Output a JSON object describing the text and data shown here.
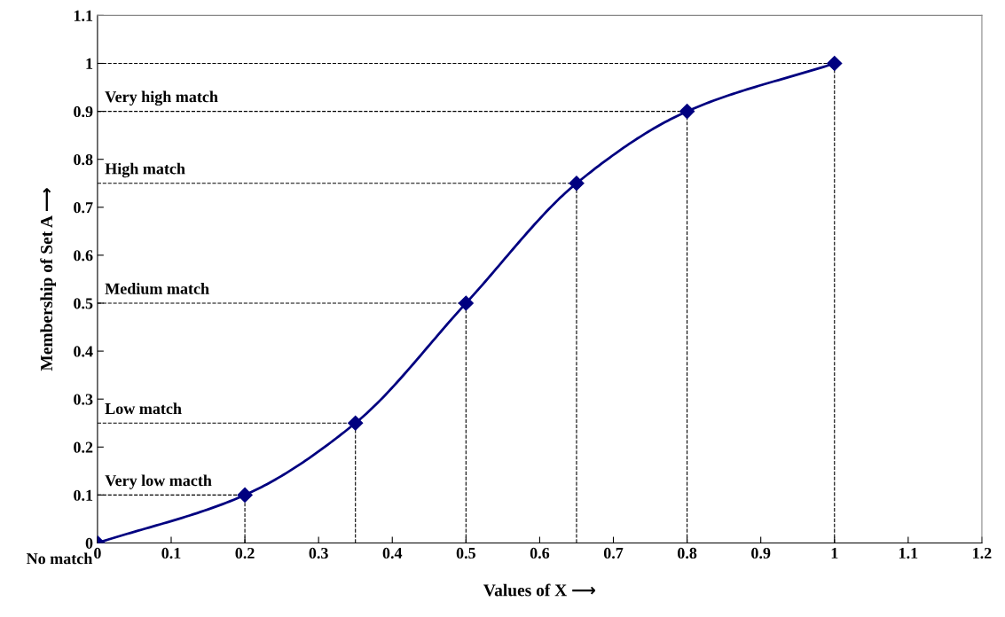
{
  "chart_data": {
    "type": "line",
    "xlabel": "Values of X ⟶",
    "ylabel": "Membership of Set A ⟶",
    "x": [
      0,
      0.2,
      0.35,
      0.5,
      0.65,
      0.8,
      1
    ],
    "series": [
      {
        "color": "#000080",
        "values": [
          0,
          0.1,
          0.25,
          0.5,
          0.75,
          0.9,
          1
        ]
      }
    ],
    "marker": "diamond",
    "line_style": "solid",
    "grid": false,
    "legend": false,
    "xlim": [
      0,
      1.2
    ],
    "xticks": [
      0,
      0.1,
      0.2,
      0.3,
      0.4,
      0.5,
      0.6,
      0.7,
      0.8,
      0.9,
      1,
      1.1,
      1.2
    ],
    "ylim": [
      0,
      1.1
    ],
    "yticks": [
      0,
      0.1,
      0.2,
      0.3,
      0.4,
      0.5,
      0.6,
      0.7,
      0.8,
      0.9,
      1,
      1.1
    ],
    "ref_lines": [
      {
        "axis": "y",
        "value": 0.1,
        "label": "Very low macth",
        "line_style": "dashed",
        "color": "#000000"
      },
      {
        "axis": "y",
        "value": 0.25,
        "label": "Low match",
        "line_style": "dashed",
        "color": "#000000"
      },
      {
        "axis": "y",
        "value": 0.5,
        "label": "Medium match",
        "line_style": "dashed",
        "color": "#000000"
      },
      {
        "axis": "y",
        "value": 0.75,
        "label": "High match",
        "line_style": "dashed",
        "color": "#000000"
      },
      {
        "axis": "y",
        "value": 0.9,
        "label": "Very high match",
        "line_style": "dashed",
        "color": "#000000"
      },
      {
        "axis": "y",
        "value": 1,
        "line_style": "dashed",
        "color": "#000000"
      },
      {
        "axis": "x",
        "value": 0.2,
        "line_style": "dashed",
        "color": "#000000"
      },
      {
        "axis": "x",
        "value": 0.35,
        "line_style": "dashed",
        "color": "#000000"
      },
      {
        "axis": "x",
        "value": 0.5,
        "line_style": "dashed",
        "color": "#000000"
      },
      {
        "axis": "x",
        "value": 0.65,
        "line_style": "dashed",
        "color": "#000000"
      },
      {
        "axis": "x",
        "value": 0.8,
        "line_style": "dashed",
        "color": "#000000"
      },
      {
        "axis": "x",
        "value": 1,
        "line_style": "dashed",
        "color": "#000000"
      }
    ],
    "annotations": [
      {
        "text": "No match",
        "x": 0,
        "y": 0
      }
    ]
  }
}
